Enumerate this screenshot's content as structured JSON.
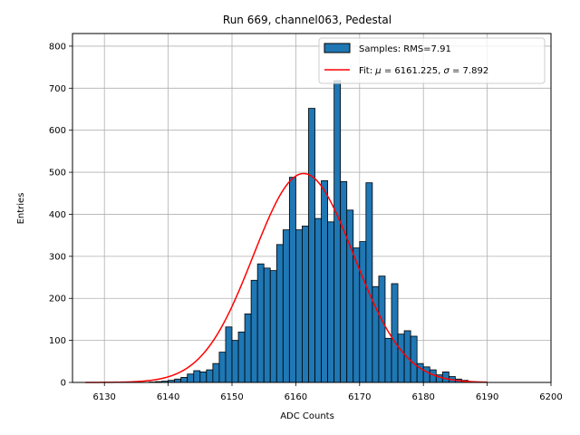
{
  "chart_data": {
    "type": "bar",
    "title": "Run 669, channel063, Pedestal",
    "xlabel": "ADC Counts",
    "ylabel": "Entries",
    "xlim": [
      6125,
      6200
    ],
    "ylim": [
      0,
      830
    ],
    "grid": true,
    "legend_position": "top-right",
    "x_ticks": [
      6130,
      6140,
      6150,
      6160,
      6170,
      6180,
      6190,
      6200
    ],
    "y_ticks": [
      0,
      100,
      200,
      300,
      400,
      500,
      600,
      700,
      800
    ],
    "histogram": {
      "name": "Samples: RMS=7.91",
      "color": "#1f77b4",
      "bin_start": 6127,
      "bin_width": 1,
      "values": [
        0,
        0,
        0,
        0,
        0,
        0,
        0,
        0,
        0,
        0,
        1,
        2,
        3,
        5,
        8,
        12,
        20,
        28,
        25,
        30,
        45,
        72,
        132,
        100,
        120,
        163,
        243,
        282,
        272,
        266,
        328,
        363,
        488,
        363,
        372,
        652,
        390,
        480,
        382,
        718,
        478,
        410,
        320,
        335,
        475,
        228,
        253,
        105,
        235,
        115,
        123,
        110,
        45,
        37,
        30,
        18,
        25,
        14,
        8,
        5,
        2,
        1,
        0
      ]
    },
    "fit": {
      "name": "Fit: μ = 6161.225, σ = 7.892",
      "color": "#ff0000",
      "type": "gaussian",
      "mu": 6161.225,
      "sigma": 7.892,
      "amplitude": 497,
      "x_range": [
        6127,
        6190
      ]
    }
  }
}
